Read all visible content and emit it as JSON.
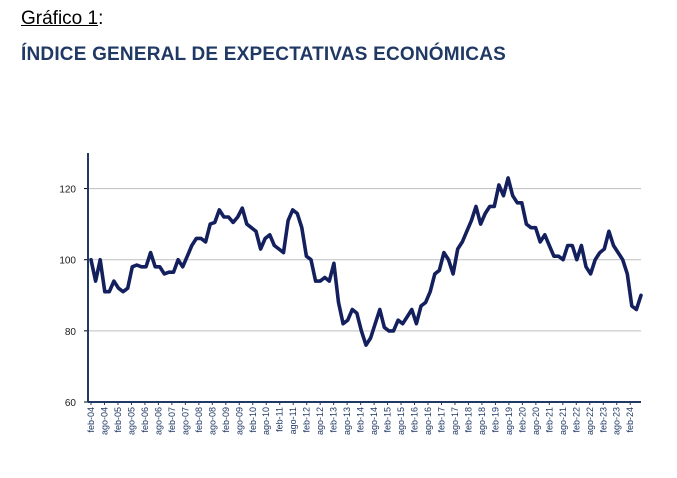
{
  "header": {
    "figure_label": "Gráfico 1",
    "figure_label_suffix": ":",
    "title": "ÍNDICE GENERAL DE EXPECTATIVAS ECONÓMICAS"
  },
  "colors": {
    "line": "#14205e",
    "grid": "#bfbfbf",
    "axis": "#1f3864",
    "title": "#1f3864"
  },
  "chart_data": {
    "type": "line",
    "title": "ÍNDICE GENERAL DE EXPECTATIVAS ECONÓMICAS",
    "xlabel": "",
    "ylabel": "",
    "ylim": [
      60,
      130
    ],
    "yticks": [
      60,
      80,
      100,
      120
    ],
    "grid": true,
    "legend": "none",
    "xtick_labels": [
      "feb-04",
      "ago-04",
      "feb-05",
      "ago-05",
      "feb-06",
      "ago-06",
      "feb-07",
      "ago-07",
      "feb-08",
      "ago-08",
      "feb-09",
      "ago-09",
      "feb-10",
      "ago-10",
      "feb-11",
      "ago-11",
      "feb-12",
      "ago-12",
      "feb-13",
      "ago-13",
      "feb-14",
      "ago-14",
      "feb-15",
      "ago-15",
      "feb-16",
      "ago-16",
      "feb-17",
      "ago-17",
      "feb-18",
      "ago-18",
      "feb-19",
      "ago-19",
      "feb-20",
      "ago-20",
      "feb-21",
      "ago-21",
      "feb-22",
      "ago-22",
      "feb-23",
      "ago-23",
      "feb-24"
    ],
    "series": [
      {
        "values": [
          100,
          94,
          100,
          91,
          91,
          94,
          92,
          91,
          92,
          98,
          98.5,
          98,
          98,
          102,
          98,
          98,
          96,
          96.5,
          96.5,
          100,
          98,
          101,
          104,
          106,
          106,
          105,
          110,
          110.5,
          114,
          112,
          112,
          110.5,
          112,
          114.5,
          110,
          109,
          108,
          103,
          106,
          107,
          104,
          103,
          102,
          111,
          114,
          113,
          109,
          101,
          100,
          94,
          94,
          95,
          94,
          99,
          88,
          82,
          83,
          86,
          85,
          80,
          76,
          78,
          82,
          86,
          81,
          80,
          80,
          83,
          82,
          84,
          86,
          82,
          87,
          88,
          91,
          96,
          97,
          102,
          100,
          96,
          103,
          105,
          108,
          111,
          115,
          110,
          113,
          115,
          115,
          121,
          118,
          123,
          118,
          116,
          116,
          110,
          109,
          109,
          105,
          107,
          104,
          101,
          101,
          100,
          104,
          104,
          100,
          104,
          98,
          96,
          100,
          102,
          103,
          108,
          104,
          102,
          100,
          96,
          87,
          86,
          90
        ]
      }
    ]
  }
}
